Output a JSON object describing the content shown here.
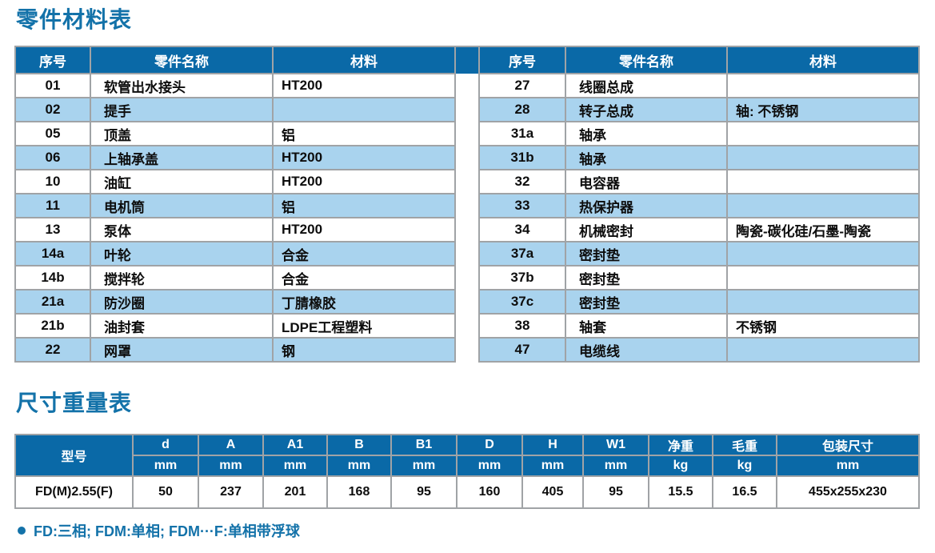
{
  "colors": {
    "header_blue": "#0A69A7",
    "row_alt_blue": "#A9D3EE",
    "title_blue": "#1372A9",
    "border_gray": "#A0A3A6"
  },
  "parts_table": {
    "title": "零件材料表",
    "columns": [
      "序号",
      "零件名称",
      "材料"
    ],
    "left_rows": [
      {
        "no": "01",
        "name": "软管出水接头",
        "material": "HT200"
      },
      {
        "no": "02",
        "name": "提手",
        "material": ""
      },
      {
        "no": "05",
        "name": "顶盖",
        "material": "铝"
      },
      {
        "no": "06",
        "name": "上轴承盖",
        "material": "HT200"
      },
      {
        "no": "10",
        "name": "油缸",
        "material": "HT200"
      },
      {
        "no": "11",
        "name": "电机筒",
        "material": "铝"
      },
      {
        "no": "13",
        "name": "泵体",
        "material": "HT200"
      },
      {
        "no": "14a",
        "name": "叶轮",
        "material": "合金"
      },
      {
        "no": "14b",
        "name": "搅拌轮",
        "material": "合金"
      },
      {
        "no": "21a",
        "name": "防沙圈",
        "material": "丁腈橡胶"
      },
      {
        "no": "21b",
        "name": "油封套",
        "material": "LDPE工程塑料"
      },
      {
        "no": "22",
        "name": "网罩",
        "material": "钢"
      }
    ],
    "right_rows": [
      {
        "no": "27",
        "name": "线圈总成",
        "material": ""
      },
      {
        "no": "28",
        "name": "转子总成",
        "material": "轴: 不锈钢"
      },
      {
        "no": "31a",
        "name": "轴承",
        "material": ""
      },
      {
        "no": "31b",
        "name": "轴承",
        "material": ""
      },
      {
        "no": "32",
        "name": "电容器",
        "material": ""
      },
      {
        "no": "33",
        "name": "热保护器",
        "material": ""
      },
      {
        "no": "34",
        "name": "机械密封",
        "material": "陶瓷-碳化硅/石墨-陶瓷"
      },
      {
        "no": "37a",
        "name": "密封垫",
        "material": ""
      },
      {
        "no": "37b",
        "name": "密封垫",
        "material": ""
      },
      {
        "no": "37c",
        "name": "密封垫",
        "material": ""
      },
      {
        "no": "38",
        "name": "轴套",
        "material": "不锈钢"
      },
      {
        "no": "47",
        "name": "电缆线",
        "material": ""
      }
    ]
  },
  "dimensions_table": {
    "title": "尺寸重量表",
    "model_header": "型号",
    "columns": [
      {
        "label": "d",
        "unit": "mm"
      },
      {
        "label": "A",
        "unit": "mm"
      },
      {
        "label": "A1",
        "unit": "mm"
      },
      {
        "label": "B",
        "unit": "mm"
      },
      {
        "label": "B1",
        "unit": "mm"
      },
      {
        "label": "D",
        "unit": "mm"
      },
      {
        "label": "H",
        "unit": "mm"
      },
      {
        "label": "W1",
        "unit": "mm"
      },
      {
        "label": "净重",
        "unit": "kg"
      },
      {
        "label": "毛重",
        "unit": "kg"
      },
      {
        "label": "包装尺寸",
        "unit": "mm"
      }
    ],
    "rows": [
      {
        "model": "FD(M)2.55(F)",
        "values": [
          "50",
          "237",
          "201",
          "168",
          "95",
          "160",
          "405",
          "95",
          "15.5",
          "16.5",
          "455x255x230"
        ]
      }
    ],
    "footnote": "FD:三相; FDM:单相; FDM···F:单相带浮球"
  }
}
